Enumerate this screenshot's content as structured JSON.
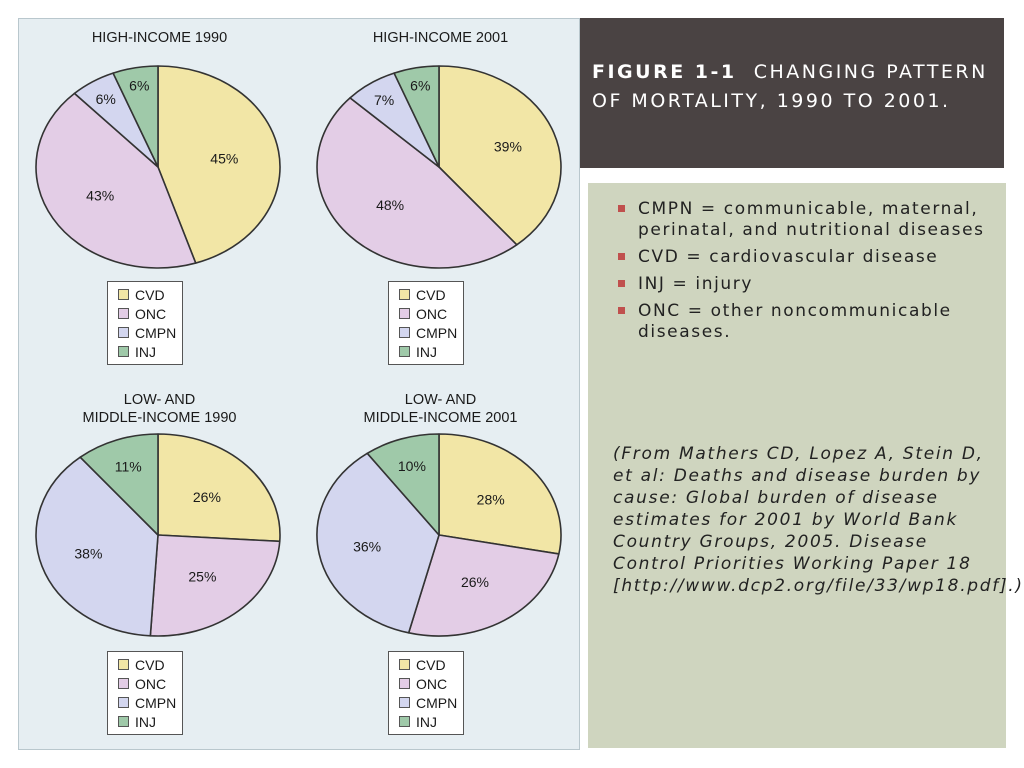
{
  "slide_title": {
    "label": "FIGURE 1-1",
    "text": "CHANGING PATTERN OF MORTALITY, 1990 TO 2001."
  },
  "notes": {
    "bullets": [
      "CMPN = communicable, maternal, perinatal, and nutritional diseases",
      " CVD = cardiovascular disease",
      " INJ = injury",
      "ONC = other noncommunicable diseases."
    ],
    "citation": "(From Mathers CD, Lopez A, Stein D, et al: Deaths and disease burden by cause: Global burden of disease estimates for 2001 by World Bank Country Groups, 2005. Disease Control Priorities Working Paper 18 [http://www.dcp2.org/file/33/wp18.pdf].)"
  },
  "colors": {
    "CVD": "#f2e6a6",
    "ONC": "#e3cde6",
    "CMPN": "#d3d6ef",
    "INJ": "#9fc9a9"
  },
  "legend_labels": [
    "CVD",
    "ONC",
    "CMPN",
    "INJ"
  ],
  "chart_data": [
    {
      "type": "pie",
      "title": [
        "HIGH-INCOME 1990"
      ],
      "categories": [
        "CVD",
        "ONC",
        "CMPN",
        "INJ"
      ],
      "values": [
        45,
        43,
        6,
        6
      ],
      "labels": [
        "45%",
        "43%",
        "6%",
        "6%"
      ]
    },
    {
      "type": "pie",
      "title": [
        "HIGH-INCOME 2001"
      ],
      "categories": [
        "CVD",
        "ONC",
        "CMPN",
        "INJ"
      ],
      "values": [
        39,
        48,
        7,
        6
      ],
      "labels": [
        "39%",
        "48%",
        "7%",
        "6%"
      ]
    },
    {
      "type": "pie",
      "title": [
        "LOW- AND",
        "MIDDLE-INCOME 1990"
      ],
      "categories": [
        "CVD",
        "ONC",
        "CMPN",
        "INJ"
      ],
      "values": [
        26,
        25,
        38,
        11
      ],
      "labels": [
        "26%",
        "25%",
        "38%",
        "11%"
      ]
    },
    {
      "type": "pie",
      "title": [
        "LOW- AND",
        "MIDDLE-INCOME 2001"
      ],
      "categories": [
        "CVD",
        "ONC",
        "CMPN",
        "INJ"
      ],
      "values": [
        28,
        26,
        36,
        10
      ],
      "labels": [
        "28%",
        "26%",
        "36%",
        "10%"
      ]
    }
  ]
}
